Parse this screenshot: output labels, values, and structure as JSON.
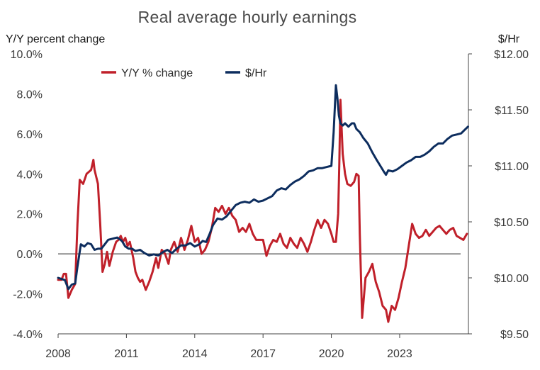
{
  "colors": {
    "yoy": "#c0202a",
    "dollars": "#0d2d5e",
    "axis": "#444444",
    "text": "#3b3b3b"
  },
  "chart_data": {
    "type": "line",
    "title": "Real average hourly earnings",
    "ylabel_left": "Y/Y percent change",
    "ylabel_right": "$/Hr",
    "xlim": [
      2008.0,
      2026.3
    ],
    "ylim_left": [
      -4,
      10
    ],
    "ylim_right": [
      9.5,
      12.0
    ],
    "x_ticks": [
      2008,
      2011,
      2014,
      2017,
      2020,
      2023
    ],
    "x_tick_labels": [
      "2008",
      "2011",
      "2014",
      "2017",
      "2020",
      "2023"
    ],
    "y_left_ticks": [
      -4,
      -2,
      0,
      2,
      4,
      6,
      8,
      10
    ],
    "y_left_tick_labels": [
      "-4.0%",
      "-2.0%",
      "0.0%",
      "2.0%",
      "4.0%",
      "6.0%",
      "8.0%",
      "10.0%"
    ],
    "y_right_ticks": [
      9.5,
      10.0,
      10.5,
      11.0,
      11.5,
      12.0
    ],
    "y_right_tick_labels": [
      "$9.50",
      "$10.00",
      "$10.50",
      "$11.00",
      "$11.50",
      "$12.00"
    ],
    "grid": false,
    "zero_line": true,
    "legend": [
      "Y/Y % change",
      "$/Hr"
    ],
    "legend_position": "top-left",
    "series": [
      {
        "name": "Y/Y % change",
        "axis": "left",
        "color": "#c0202a",
        "x": [
          2008.0,
          2008.15,
          2008.25,
          2008.35,
          2008.45,
          2008.6,
          2008.75,
          2008.85,
          2008.95,
          2009.1,
          2009.25,
          2009.35,
          2009.45,
          2009.55,
          2009.6,
          2009.75,
          2009.85,
          2009.95,
          2010.05,
          2010.15,
          2010.25,
          2010.4,
          2010.55,
          2010.65,
          2010.75,
          2010.85,
          2010.95,
          2011.05,
          2011.15,
          2011.3,
          2011.4,
          2011.5,
          2011.6,
          2011.7,
          2011.85,
          2012.0,
          2012.15,
          2012.3,
          2012.4,
          2012.55,
          2012.7,
          2012.85,
          2012.95,
          2013.1,
          2013.25,
          2013.4,
          2013.55,
          2013.7,
          2013.85,
          2014.0,
          2014.15,
          2014.3,
          2014.45,
          2014.6,
          2014.75,
          2014.9,
          2015.05,
          2015.2,
          2015.35,
          2015.5,
          2015.65,
          2015.8,
          2015.95,
          2016.1,
          2016.25,
          2016.4,
          2016.55,
          2016.7,
          2016.85,
          2017.0,
          2017.15,
          2017.3,
          2017.45,
          2017.6,
          2017.75,
          2017.9,
          2018.05,
          2018.2,
          2018.35,
          2018.5,
          2018.65,
          2018.8,
          2018.95,
          2019.1,
          2019.25,
          2019.4,
          2019.55,
          2019.7,
          2019.85,
          2020.0,
          2020.1,
          2020.2,
          2020.3,
          2020.35,
          2020.4,
          2020.5,
          2020.6,
          2020.7,
          2020.85,
          2021.0,
          2021.1,
          2021.2,
          2021.25,
          2021.35,
          2021.5,
          2021.65,
          2021.8,
          2021.95,
          2022.1,
          2022.25,
          2022.4,
          2022.5,
          2022.65,
          2022.8,
          2022.95,
          2023.1,
          2023.25,
          2023.4,
          2023.55,
          2023.7,
          2023.85,
          2024.0,
          2024.15,
          2024.3,
          2024.45,
          2024.6,
          2024.75,
          2024.9,
          2025.05,
          2025.2,
          2025.35,
          2025.5,
          2025.65,
          2025.8,
          2025.95
        ],
        "y": [
          -1.3,
          -1.3,
          -1.0,
          -1.0,
          -2.2,
          -1.8,
          -1.5,
          1.5,
          3.7,
          3.5,
          4.0,
          4.1,
          4.2,
          4.7,
          4.2,
          3.5,
          1.5,
          -0.9,
          -0.5,
          0.1,
          -0.6,
          0.1,
          0.6,
          0.7,
          0.9,
          0.6,
          0.8,
          0.4,
          0.6,
          -0.2,
          -0.9,
          -1.2,
          -1.4,
          -1.3,
          -1.8,
          -1.4,
          -0.9,
          -0.2,
          -0.7,
          0.2,
          0.0,
          -0.5,
          0.2,
          0.6,
          0.1,
          0.8,
          0.2,
          0.7,
          1.4,
          0.6,
          0.8,
          0.0,
          0.2,
          0.6,
          1.3,
          2.3,
          2.1,
          2.4,
          2.0,
          2.3,
          1.9,
          1.7,
          1.1,
          1.3,
          1.1,
          1.5,
          1.0,
          0.7,
          0.7,
          0.7,
          -0.1,
          0.4,
          0.7,
          0.6,
          1.0,
          0.5,
          0.3,
          0.8,
          0.5,
          0.3,
          0.8,
          0.5,
          0.1,
          0.6,
          1.2,
          1.7,
          1.3,
          1.7,
          1.5,
          1.0,
          0.6,
          0.6,
          2.0,
          4.5,
          7.7,
          5.0,
          4.0,
          3.5,
          3.4,
          3.6,
          4.0,
          3.9,
          1.0,
          -3.2,
          -1.2,
          -0.9,
          -0.5,
          -1.4,
          -1.9,
          -2.6,
          -2.8,
          -3.4,
          -2.6,
          -2.8,
          -2.2,
          -1.4,
          -0.7,
          0.4,
          1.5,
          1.0,
          0.8,
          0.9,
          1.2,
          0.9,
          1.1,
          1.3,
          1.4,
          1.2,
          1.0,
          1.2,
          1.3,
          0.9,
          0.8,
          0.7,
          1.0
        ]
      },
      {
        "name": "$/Hr",
        "axis": "right",
        "color": "#0d2d5e",
        "x": [
          2008.0,
          2008.15,
          2008.3,
          2008.45,
          2008.6,
          2008.75,
          2008.85,
          2009.0,
          2009.15,
          2009.3,
          2009.45,
          2009.6,
          2009.75,
          2009.9,
          2010.05,
          2010.2,
          2010.4,
          2010.6,
          2010.8,
          2010.95,
          2011.1,
          2011.25,
          2011.4,
          2011.6,
          2011.8,
          2012.0,
          2012.2,
          2012.4,
          2012.6,
          2012.8,
          2013.0,
          2013.2,
          2013.4,
          2013.6,
          2013.8,
          2014.0,
          2014.2,
          2014.35,
          2014.5,
          2014.65,
          2014.8,
          2015.0,
          2015.2,
          2015.4,
          2015.6,
          2015.8,
          2016.0,
          2016.2,
          2016.4,
          2016.6,
          2016.8,
          2017.0,
          2017.2,
          2017.4,
          2017.6,
          2017.8,
          2018.0,
          2018.2,
          2018.4,
          2018.6,
          2018.8,
          2019.0,
          2019.2,
          2019.4,
          2019.6,
          2019.8,
          2020.0,
          2020.1,
          2020.2,
          2020.27,
          2020.33,
          2020.4,
          2020.5,
          2020.6,
          2020.75,
          2020.9,
          2021.0,
          2021.1,
          2021.25,
          2021.4,
          2021.6,
          2021.8,
          2022.0,
          2022.15,
          2022.3,
          2022.4,
          2022.5,
          2022.7,
          2022.9,
          2023.1,
          2023.3,
          2023.5,
          2023.7,
          2023.9,
          2024.1,
          2024.3,
          2024.5,
          2024.7,
          2024.9,
          2025.1,
          2025.3,
          2025.5,
          2025.7,
          2025.85,
          2026.0
        ],
        "y": [
          10.0,
          9.99,
          9.98,
          9.9,
          9.94,
          9.95,
          10.1,
          10.3,
          10.28,
          10.31,
          10.3,
          10.25,
          10.26,
          10.26,
          10.3,
          10.34,
          10.35,
          10.36,
          10.33,
          10.28,
          10.26,
          10.26,
          10.24,
          10.25,
          10.22,
          10.2,
          10.21,
          10.2,
          10.23,
          10.25,
          10.22,
          10.26,
          10.29,
          10.29,
          10.31,
          10.28,
          10.3,
          10.33,
          10.32,
          10.39,
          10.47,
          10.53,
          10.52,
          10.55,
          10.6,
          10.65,
          10.67,
          10.68,
          10.67,
          10.7,
          10.68,
          10.69,
          10.71,
          10.73,
          10.78,
          10.8,
          10.79,
          10.83,
          10.86,
          10.88,
          10.91,
          10.95,
          10.96,
          10.98,
          10.98,
          10.99,
          11.0,
          11.3,
          11.72,
          11.6,
          11.45,
          11.38,
          11.36,
          11.38,
          11.35,
          11.38,
          11.38,
          11.33,
          11.3,
          11.25,
          11.2,
          11.12,
          11.05,
          11.0,
          10.95,
          10.92,
          10.96,
          10.95,
          10.97,
          11.0,
          11.03,
          11.05,
          11.08,
          11.08,
          11.1,
          11.13,
          11.17,
          11.2,
          11.2,
          11.24,
          11.27,
          11.28,
          11.29,
          11.32,
          11.35
        ]
      }
    ]
  }
}
